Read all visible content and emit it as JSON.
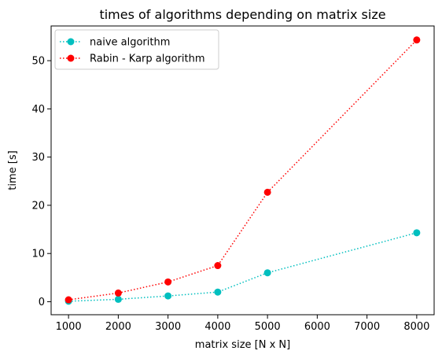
{
  "chart_data": {
    "type": "line",
    "title": "times of algorithms depending on matrix size",
    "xlabel": "matrix size [N x N]",
    "ylabel": "time [s]",
    "x": [
      1000,
      2000,
      3000,
      4000,
      5000,
      8000
    ],
    "xlim": [
      650,
      8350
    ],
    "ylim": [
      -2.7,
      57.2
    ],
    "xticks": [
      1000,
      2000,
      3000,
      4000,
      5000,
      6000,
      7000,
      8000
    ],
    "yticks": [
      0,
      10,
      20,
      30,
      40,
      50
    ],
    "grid": false,
    "legend_position": "top-left",
    "series": [
      {
        "name": "naive algorithm",
        "color": "#00bfbf",
        "line_style": "dotted",
        "marker": "circle",
        "values": [
          0.1,
          0.5,
          1.2,
          2.0,
          6.0,
          14.3
        ]
      },
      {
        "name": "Rabin - Karp algorithm",
        "color": "#ff0000",
        "line_style": "dotted",
        "marker": "circle",
        "values": [
          0.4,
          1.8,
          4.1,
          7.5,
          22.7,
          54.3
        ]
      }
    ]
  }
}
